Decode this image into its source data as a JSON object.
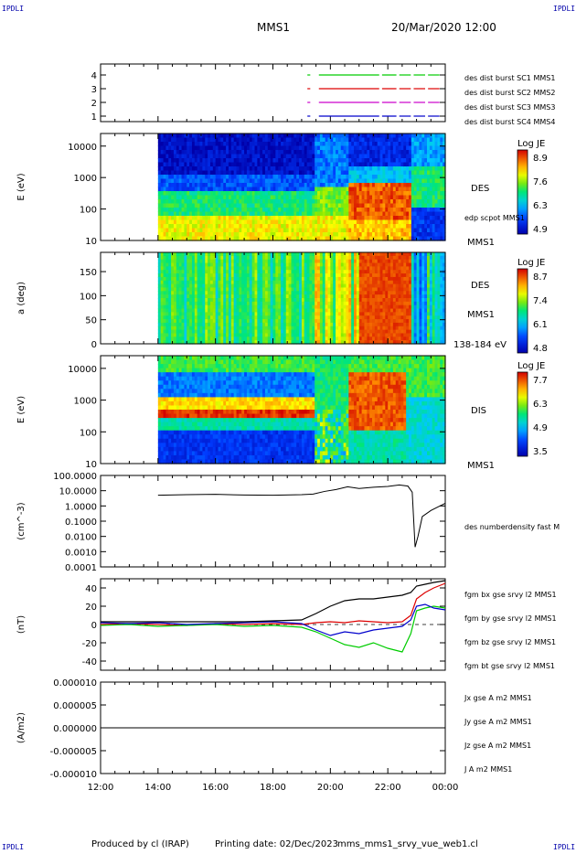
{
  "corner_labels": {
    "top_left": "IPDLI",
    "top_right": "IPDLI",
    "bottom_left": "IPDLI",
    "bottom_right": "IPDLI"
  },
  "header": {
    "spacecraft": "MMS1",
    "date_time": "20/Mar/2020 12:00"
  },
  "footer": {
    "produced_by": "Produced by cl (IRAP)",
    "printing_date": "Printing date: 02/Dec/2023",
    "product": "mms_mms1_srvy_vue_web1.cl"
  },
  "colors": {
    "red": "#dd0000",
    "green": "#00cc00",
    "blue": "#0000cc",
    "magenta": "#cc00cc",
    "black": "#000000"
  },
  "chart_data": [
    {
      "id": "availability",
      "type": "line",
      "y_ticks": [
        "4",
        "3",
        "2",
        "1"
      ],
      "legend": [
        {
          "name": "des dist burst SC1 MMS1",
          "color": "#0000cc"
        },
        {
          "name": "des dist burst SC2 MMS2",
          "color": "#cc00cc"
        },
        {
          "name": "des dist burst SC3 MMS3",
          "color": "#dd0000"
        },
        {
          "name": "des dist burst SC4 MMS4",
          "color": "#00cc00"
        }
      ],
      "series": [
        {
          "level": 4,
          "color": "#00cc00",
          "segments": [
            [
              19.2,
              19.3
            ],
            [
              19.6,
              21.7
            ],
            [
              21.8,
              22.3
            ],
            [
              22.4,
              22.8
            ],
            [
              22.9,
              23.3
            ],
            [
              23.4,
              23.8
            ]
          ]
        },
        {
          "level": 3,
          "color": "#dd0000",
          "segments": [
            [
              19.2,
              19.3
            ],
            [
              19.6,
              21.7
            ],
            [
              21.8,
              22.3
            ],
            [
              22.4,
              22.8
            ],
            [
              22.9,
              23.3
            ],
            [
              23.4,
              23.8
            ]
          ]
        },
        {
          "level": 2,
          "color": "#cc00cc",
          "segments": [
            [
              19.2,
              19.3
            ],
            [
              19.6,
              21.7
            ],
            [
              21.8,
              22.3
            ],
            [
              22.4,
              22.8
            ],
            [
              22.9,
              23.3
            ],
            [
              23.4,
              23.8
            ]
          ]
        },
        {
          "level": 1,
          "color": "#0000cc",
          "segments": [
            [
              19.2,
              19.3
            ],
            [
              19.6,
              21.7
            ],
            [
              21.8,
              22.3
            ],
            [
              22.4,
              22.8
            ],
            [
              22.9,
              23.3
            ],
            [
              23.4,
              23.8
            ]
          ]
        }
      ]
    },
    {
      "id": "des_energy",
      "type": "heatmap",
      "ylabel": "E (eV)",
      "y_ticks": [
        "10000",
        "1000",
        "100",
        "10"
      ],
      "side_labels": [
        "DES",
        "edp scpot MMS1",
        "MMS1"
      ],
      "colorbar": {
        "title": "Log JE",
        "ticks": [
          "8.9",
          "7.6",
          "6.3",
          "4.9"
        ]
      },
      "data_start_hour": 14.0
    },
    {
      "id": "des_pitch",
      "type": "heatmap",
      "ylabel": "a (deg)",
      "y_ticks": [
        "150",
        "100",
        "50",
        "0"
      ],
      "side_labels": [
        "DES",
        "MMS1",
        "138-184 eV"
      ],
      "colorbar": {
        "title": "Log JE",
        "ticks": [
          "8.7",
          "7.4",
          "6.1",
          "4.8"
        ]
      },
      "data_start_hour": 14.0
    },
    {
      "id": "dis_energy",
      "type": "heatmap",
      "ylabel": "E (eV)",
      "y_ticks": [
        "10000",
        "1000",
        "100",
        "10"
      ],
      "side_labels": [
        "DIS",
        "MMS1"
      ],
      "colorbar": {
        "title": "Log JE",
        "ticks": [
          "7.7",
          "6.3",
          "4.9",
          "3.5"
        ]
      },
      "data_start_hour": 14.0
    },
    {
      "id": "density",
      "type": "line",
      "ylabel": "(cm^-3)",
      "y_ticks": [
        "100.0000",
        "10.0000",
        "1.0000",
        "0.1000",
        "0.0100",
        "0.0010",
        "0.0001"
      ],
      "legend": [
        {
          "name": "des numberdensity fast M",
          "color": "#000000"
        }
      ],
      "x": [
        14.0,
        15.0,
        16.0,
        17.0,
        18.0,
        19.0,
        19.4,
        19.8,
        20.2,
        20.6,
        21.0,
        21.5,
        22.0,
        22.4,
        22.7,
        22.85,
        22.95,
        23.05,
        23.2,
        23.5,
        24.0
      ],
      "values": [
        5.0,
        5.5,
        5.8,
        5.2,
        5.0,
        5.5,
        6.0,
        9.0,
        12.0,
        18.0,
        14.0,
        17.0,
        19.0,
        24.0,
        20.0,
        8.0,
        0.002,
        0.01,
        0.2,
        0.5,
        1.5
      ]
    },
    {
      "id": "magnetic_field",
      "type": "line",
      "ylabel": "(nT)",
      "y_ticks": [
        "40",
        "20",
        "0",
        "-20",
        "-40"
      ],
      "ylim": [
        -50,
        50
      ],
      "legend": [
        {
          "name": "fgm bx gse srvy l2 MMS1",
          "color": "#dd0000"
        },
        {
          "name": "fgm by gse srvy l2 MMS1",
          "color": "#00cc00"
        },
        {
          "name": "fgm bz gse srvy l2 MMS1",
          "color": "#0000cc"
        },
        {
          "name": "fgm bt gse srvy l2 MMS1",
          "color": "#000000"
        }
      ],
      "x": [
        12.0,
        13.0,
        14.0,
        15.0,
        16.0,
        17.0,
        18.0,
        19.0,
        19.5,
        20.0,
        20.5,
        21.0,
        21.5,
        22.0,
        22.5,
        22.8,
        23.0,
        23.3,
        23.6,
        24.0
      ],
      "series": [
        {
          "name": "bx",
          "color": "#dd0000",
          "values": [
            0,
            1,
            0,
            -1,
            1,
            0,
            1,
            0,
            2,
            3,
            2,
            4,
            3,
            2,
            3,
            10,
            28,
            35,
            40,
            45
          ]
        },
        {
          "name": "by",
          "color": "#00cc00",
          "values": [
            -1,
            0,
            -2,
            -1,
            0,
            -2,
            -1,
            -3,
            -8,
            -15,
            -22,
            -25,
            -20,
            -26,
            -30,
            -10,
            15,
            18,
            20,
            18
          ]
        },
        {
          "name": "bz",
          "color": "#0000cc",
          "values": [
            2,
            1,
            2,
            0,
            1,
            2,
            3,
            1,
            -6,
            -12,
            -8,
            -10,
            -6,
            -4,
            -2,
            5,
            20,
            22,
            18,
            16
          ]
        },
        {
          "name": "bt",
          "color": "#000000",
          "values": [
            3,
            3,
            3,
            3,
            3,
            3,
            4,
            5,
            12,
            20,
            26,
            28,
            28,
            30,
            32,
            35,
            42,
            44,
            46,
            48
          ]
        }
      ]
    },
    {
      "id": "current_density",
      "type": "line",
      "ylabel": "(A/m2)",
      "y_ticks": [
        "0.000010",
        "0.000005",
        "0.000000",
        "-0.000005",
        "-0.000010"
      ],
      "ylim": [
        -1e-05,
        1e-05
      ],
      "legend": [
        {
          "name": "Jx gse A m2 MMS1",
          "color": "#dd0000"
        },
        {
          "name": "Jy gse A m2 MMS1",
          "color": "#00cc00"
        },
        {
          "name": "Jz gse A m2 MMS1",
          "color": "#0000cc"
        },
        {
          "name": "J A m2 MMS1",
          "color": "#000000"
        }
      ]
    }
  ],
  "x_axis": {
    "ticks": [
      "12:00",
      "14:00",
      "16:00",
      "18:00",
      "20:00",
      "22:00",
      "00:00"
    ],
    "range_hours": [
      12,
      24
    ]
  }
}
